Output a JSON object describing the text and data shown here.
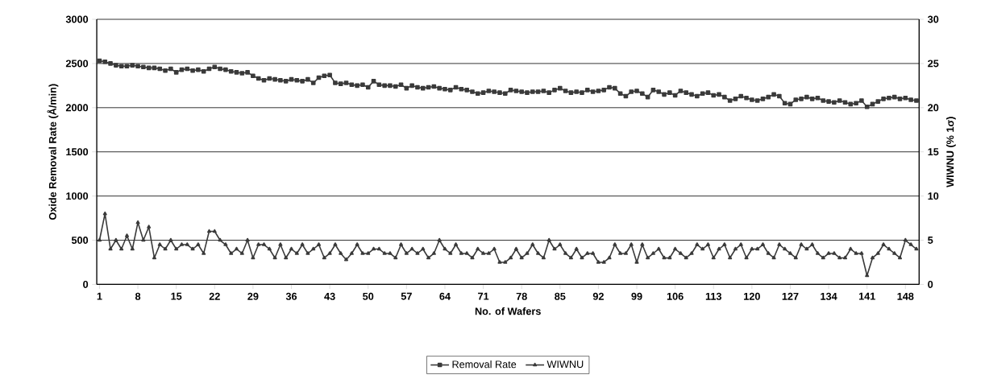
{
  "chart_data": {
    "type": "line",
    "xlabel": "No. of Wafers",
    "ylabel": "Oxide Removal Rate (Å/min)",
    "y2label": "WIWNU (% 1σ)",
    "x": [
      1,
      2,
      3,
      4,
      5,
      6,
      7,
      8,
      9,
      10,
      11,
      12,
      13,
      14,
      15,
      16,
      17,
      18,
      19,
      20,
      21,
      22,
      23,
      24,
      25,
      26,
      27,
      28,
      29,
      30,
      31,
      32,
      33,
      34,
      35,
      36,
      37,
      38,
      39,
      40,
      41,
      42,
      43,
      44,
      45,
      46,
      47,
      48,
      49,
      50,
      51,
      52,
      53,
      54,
      55,
      56,
      57,
      58,
      59,
      60,
      61,
      62,
      63,
      64,
      65,
      66,
      67,
      68,
      69,
      70,
      71,
      72,
      73,
      74,
      75,
      76,
      77,
      78,
      79,
      80,
      81,
      82,
      83,
      84,
      85,
      86,
      87,
      88,
      89,
      90,
      91,
      92,
      93,
      94,
      95,
      96,
      97,
      98,
      99,
      100,
      101,
      102,
      103,
      104,
      105,
      106,
      107,
      108,
      109,
      110,
      111,
      112,
      113,
      114,
      115,
      116,
      117,
      118,
      119,
      120,
      121,
      122,
      123,
      124,
      125,
      126,
      127,
      128,
      129,
      130,
      131,
      132,
      133,
      134,
      135,
      136,
      137,
      138,
      139,
      140,
      141,
      142,
      143,
      144,
      145,
      146,
      147,
      148,
      149,
      150
    ],
    "series": [
      {
        "name": "Removal Rate",
        "color": "#3a3a3a",
        "marker": "square",
        "values": [
          2530,
          2520,
          2500,
          2480,
          2470,
          2470,
          2480,
          2470,
          2460,
          2450,
          2450,
          2440,
          2420,
          2440,
          2400,
          2430,
          2440,
          2420,
          2430,
          2410,
          2440,
          2460,
          2440,
          2430,
          2410,
          2400,
          2390,
          2400,
          2360,
          2330,
          2310,
          2330,
          2320,
          2310,
          2300,
          2320,
          2310,
          2300,
          2320,
          2280,
          2340,
          2360,
          2370,
          2280,
          2270,
          2280,
          2260,
          2250,
          2260,
          2230,
          2300,
          2260,
          2250,
          2250,
          2240,
          2260,
          2220,
          2250,
          2230,
          2220,
          2230,
          2240,
          2220,
          2210,
          2200,
          2230,
          2210,
          2200,
          2180,
          2160,
          2170,
          2190,
          2180,
          2170,
          2160,
          2200,
          2190,
          2180,
          2170,
          2180,
          2180,
          2190,
          2170,
          2200,
          2220,
          2190,
          2170,
          2180,
          2170,
          2200,
          2180,
          2190,
          2200,
          2230,
          2220,
          2160,
          2130,
          2180,
          2190,
          2160,
          2120,
          2200,
          2180,
          2150,
          2170,
          2140,
          2190,
          2170,
          2150,
          2130,
          2160,
          2170,
          2140,
          2150,
          2120,
          2080,
          2100,
          2130,
          2110,
          2090,
          2080,
          2100,
          2120,
          2150,
          2130,
          2050,
          2040,
          2090,
          2100,
          2120,
          2100,
          2110,
          2080,
          2070,
          2060,
          2080,
          2060,
          2040,
          2050,
          2080,
          2010,
          2040,
          2070,
          2100,
          2110,
          2120,
          2100,
          2110,
          2090,
          2080
        ]
      },
      {
        "name": "WIWNU",
        "color": "#3a3a3a",
        "marker": "triangle",
        "axis": "y2",
        "values": [
          5,
          8,
          4,
          5,
          4,
          5.5,
          4,
          7,
          5,
          6.5,
          3,
          4.5,
          4,
          5,
          4,
          4.5,
          4.5,
          4,
          4.5,
          3.5,
          6,
          6,
          5,
          4.5,
          3.5,
          4,
          3.5,
          5,
          3,
          4.5,
          4.5,
          4,
          3,
          4.5,
          3,
          4,
          3.5,
          4.5,
          3.5,
          4,
          4.5,
          3,
          3.5,
          4.5,
          3.5,
          2.8,
          3.5,
          4.5,
          3.5,
          3.5,
          4,
          4,
          3.5,
          3.5,
          3,
          4.5,
          3.5,
          4,
          3.5,
          4,
          3,
          3.5,
          5,
          4,
          3.5,
          4.5,
          3.5,
          3.5,
          3,
          4,
          3.5,
          3.5,
          4,
          2.5,
          2.5,
          3,
          4,
          3,
          3.5,
          4.5,
          3.5,
          3,
          5,
          4,
          4.5,
          3.5,
          3,
          4,
          3,
          3.5,
          3.5,
          2.5,
          2.5,
          3,
          4.5,
          3.5,
          3.5,
          4.5,
          2.5,
          4.5,
          3,
          3.5,
          4,
          3,
          3,
          4,
          3.5,
          3,
          3.5,
          4.5,
          4,
          4.5,
          3,
          4,
          4.5,
          3,
          4,
          4.5,
          3,
          4,
          4,
          4.5,
          3.5,
          3,
          4.5,
          4,
          3.5,
          3,
          4.5,
          4,
          4.5,
          3.5,
          3,
          3.5,
          3.5,
          3,
          3,
          4,
          3.5,
          3.5,
          1,
          3,
          3.5,
          4.5,
          4,
          3.5,
          3,
          5,
          4.5,
          4
        ]
      }
    ],
    "xlim": [
      0.5,
      150.5
    ],
    "xticks": [
      1,
      8,
      15,
      22,
      29,
      36,
      43,
      50,
      57,
      64,
      71,
      78,
      85,
      92,
      99,
      106,
      113,
      120,
      127,
      134,
      141,
      148
    ],
    "ylim": [
      0,
      3000
    ],
    "yticks": [
      0,
      500,
      1000,
      1500,
      2000,
      2500,
      3000
    ],
    "y2lim": [
      0,
      30
    ],
    "y2ticks": [
      0,
      5,
      10,
      15,
      20,
      25,
      30
    ],
    "grid": "y",
    "legend": "bottom",
    "line_style": "solid"
  }
}
